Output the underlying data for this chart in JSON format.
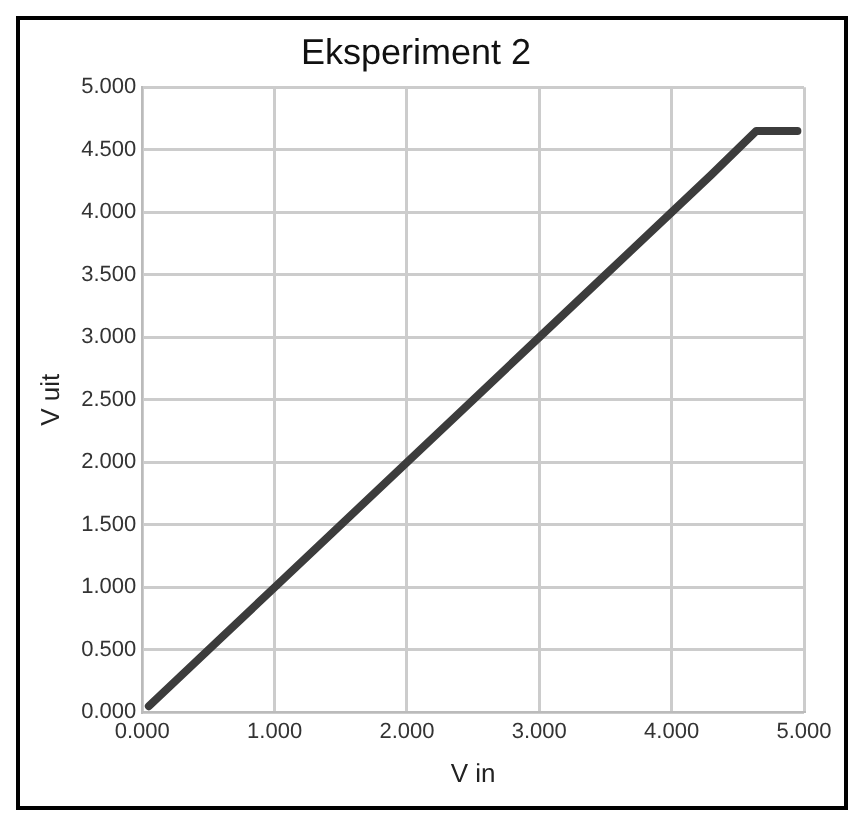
{
  "chart_data": {
    "type": "line",
    "title": "Eksperiment 2",
    "xlabel": "V in",
    "ylabel": "V uit",
    "x": [
      0.05,
      0.3,
      0.6,
      1,
      1.3,
      1.6,
      2,
      2.5,
      3,
      3.5,
      4,
      4.3,
      4.64,
      4.8,
      4.95
    ],
    "series": [
      {
        "color": "#3c3c3c",
        "values": [
          0.05,
          0.3,
          0.6,
          1,
          1.3,
          1.6,
          2,
          2.5,
          3,
          3.5,
          4,
          4.3,
          4.65,
          4.65,
          4.65
        ]
      }
    ],
    "xlim": [
      0,
      5
    ],
    "ylim": [
      0,
      5
    ],
    "xticks": [
      {
        "value": 0,
        "label": "0.000"
      },
      {
        "value": 1,
        "label": "1.000"
      },
      {
        "value": 2,
        "label": "2.000"
      },
      {
        "value": 3,
        "label": "3.000"
      },
      {
        "value": 4,
        "label": "4.000"
      },
      {
        "value": 5,
        "label": "5.000"
      }
    ],
    "yticks": [
      {
        "value": 0,
        "label": "0.000"
      },
      {
        "value": 0.5,
        "label": "0.500"
      },
      {
        "value": 1,
        "label": "1.000"
      },
      {
        "value": 1.5,
        "label": "1.500"
      },
      {
        "value": 2,
        "label": "2.000"
      },
      {
        "value": 2.5,
        "label": "2.500"
      },
      {
        "value": 3,
        "label": "3.000"
      },
      {
        "value": 3.5,
        "label": "3.500"
      },
      {
        "value": 4,
        "label": "4.000"
      },
      {
        "value": 4.5,
        "label": "4.500"
      },
      {
        "value": 5,
        "label": "5.000"
      }
    ],
    "grid": true,
    "legend": false,
    "marker": "none",
    "line_style": "solid"
  }
}
